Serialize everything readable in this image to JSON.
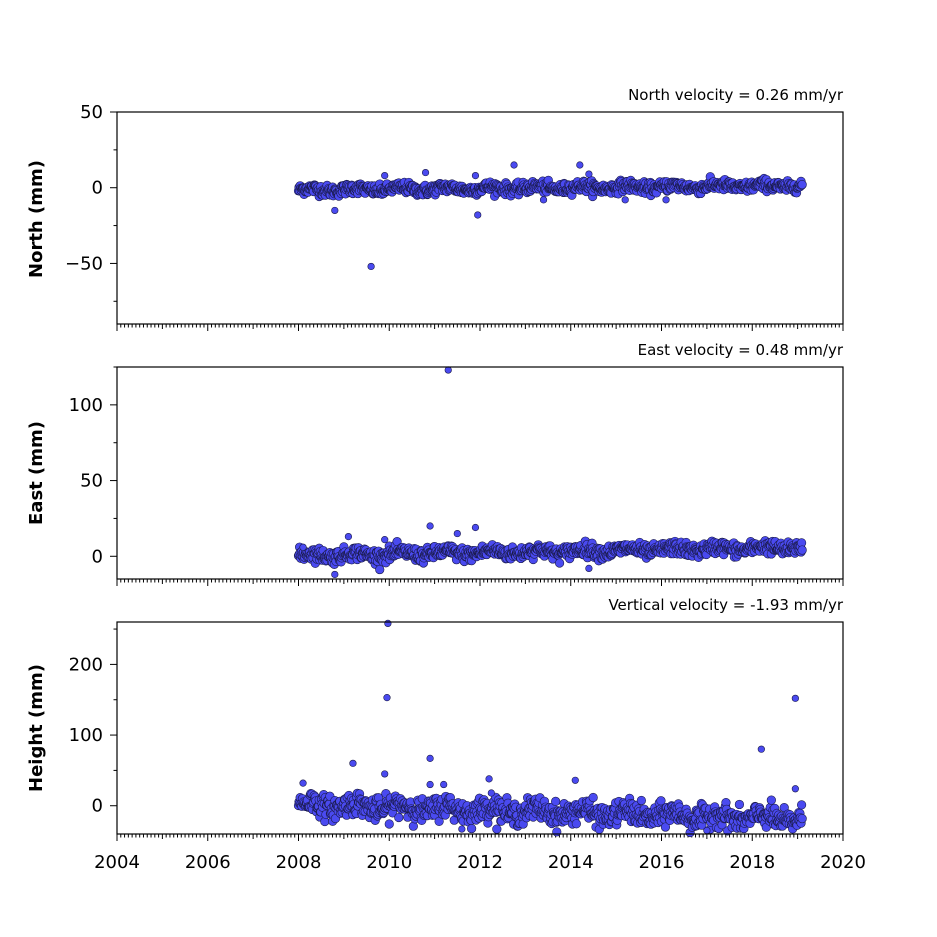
{
  "chart_data": [
    {
      "type": "scatter",
      "title": "North velocity = 0.26 mm/yr",
      "ylabel": "North (mm)",
      "ylim": [
        -90,
        50
      ],
      "yticks": [
        -50,
        0,
        50
      ],
      "xlim": [
        2004,
        2020
      ],
      "xticks": [],
      "x_start": 2008.0,
      "x_end": 2019.1,
      "trend_start": -1.5,
      "trend_slope": 0.26,
      "noise": 1.8,
      "outliers": [
        [
          2008.8,
          -15
        ],
        [
          2009.6,
          -52
        ],
        [
          2009.9,
          8
        ],
        [
          2010.8,
          10
        ],
        [
          2011.9,
          8
        ],
        [
          2011.95,
          -18
        ],
        [
          2012.75,
          15
        ],
        [
          2014.2,
          15
        ],
        [
          2014.4,
          9
        ],
        [
          2015.2,
          -8
        ],
        [
          2016.1,
          -8
        ],
        [
          2013.4,
          -8
        ]
      ],
      "color": "#4a4af0"
    },
    {
      "type": "scatter",
      "title": "East velocity = 0.48 mm/yr",
      "ylabel": "East (mm)",
      "ylim": [
        -15,
        125
      ],
      "yticks": [
        0,
        50,
        100
      ],
      "xlim": [
        2004,
        2020
      ],
      "xticks": [],
      "x_start": 2008.0,
      "x_end": 2019.1,
      "trend_start": 0.5,
      "trend_slope": 0.48,
      "noise": 2.2,
      "outliers": [
        [
          2008.8,
          -12
        ],
        [
          2009.1,
          13
        ],
        [
          2009.9,
          11
        ],
        [
          2010.9,
          20
        ],
        [
          2011.3,
          123
        ],
        [
          2011.5,
          15
        ],
        [
          2011.9,
          19
        ],
        [
          2014.4,
          -8
        ],
        [
          2008.1,
          6
        ]
      ],
      "color": "#4a4af0"
    },
    {
      "type": "scatter",
      "title": "Vertical velocity = -1.93 mm/yr",
      "ylabel": "Height (mm)",
      "ylim": [
        -40,
        260
      ],
      "yticks": [
        0,
        100,
        200
      ],
      "xlim": [
        2004,
        2020
      ],
      "xticks": [
        2004,
        2006,
        2008,
        2010,
        2012,
        2014,
        2016,
        2018,
        2020
      ],
      "x_start": 2008.0,
      "x_end": 2019.1,
      "trend_start": 2,
      "trend_slope": -1.93,
      "noise": 8,
      "outliers": [
        [
          2008.1,
          32
        ],
        [
          2009.2,
          60
        ],
        [
          2009.9,
          45
        ],
        [
          2009.95,
          153
        ],
        [
          2009.97,
          258
        ],
        [
          2010.9,
          67
        ],
        [
          2010.9,
          30
        ],
        [
          2011.2,
          30
        ],
        [
          2012.2,
          38
        ],
        [
          2012.25,
          18
        ],
        [
          2014.1,
          36
        ],
        [
          2018.2,
          80
        ],
        [
          2018.95,
          152
        ],
        [
          2018.95,
          24
        ],
        [
          2017.0,
          -35
        ],
        [
          2011.6,
          -33
        ]
      ],
      "color": "#4a4af0"
    }
  ]
}
